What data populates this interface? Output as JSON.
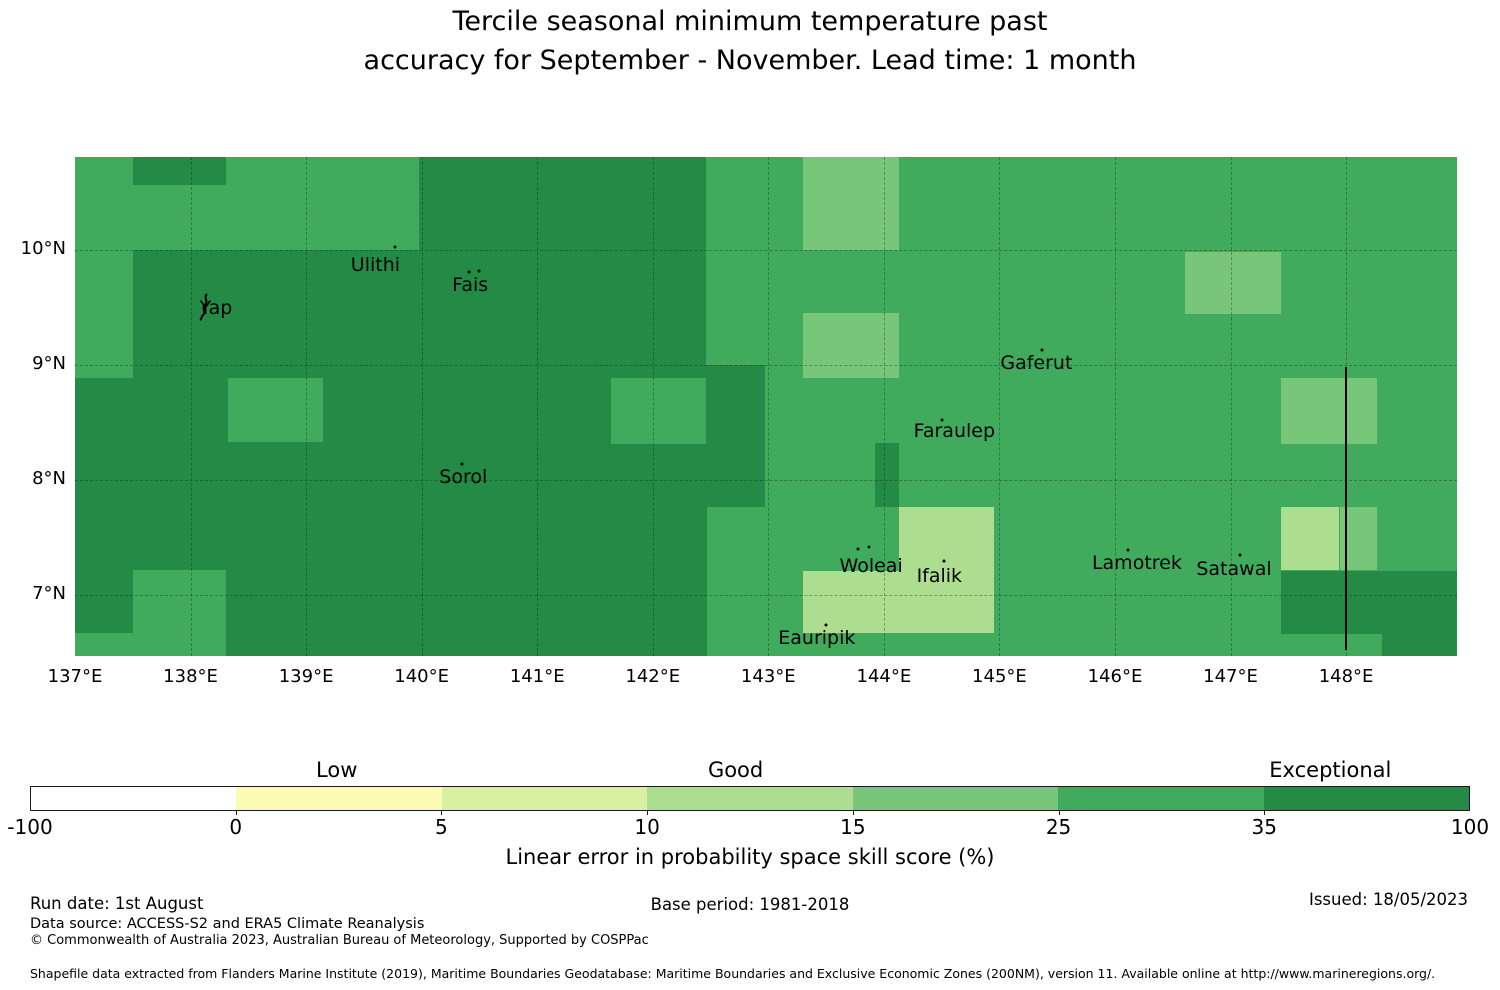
{
  "title": {
    "line1": "Tercile seasonal minimum temperature past",
    "line2": "accuracy for September - November. Lead time: 1 month"
  },
  "footer": {
    "run_date": "Run date: 1st August",
    "base_period": "Base period: 1981-2018",
    "issued": "Issued: 18/05/2023",
    "data_source": "Data source: ACCESS-S2 and ERA5 Climate Reanalysis",
    "copyright": "© Commonwealth of Australia 2023, Australian Bureau of Meteorology, Supported by COSPPac",
    "shapefile": "Shapefile data extracted from Flanders Marine Institute (2019), Maritime Boundaries Geodatabase: Maritime Boundaries and Exclusive Economic Zones (200NM), version 11. Available online at http://www.marineregions.org/."
  },
  "chart_data": {
    "type": "heatmap",
    "title": "Tercile seasonal minimum temperature past accuracy for September - November. Lead time: 1 month",
    "xlabel_ticks": [
      "137°E",
      "138°E",
      "139°E",
      "140°E",
      "141°E",
      "142°E",
      "143°E",
      "144°E",
      "145°E",
      "146°E",
      "147°E",
      "148°E"
    ],
    "ylabel_ticks": [
      "10°N",
      "9°N",
      "8°N",
      "7°N"
    ],
    "lon_range": [
      137.0,
      148.96
    ],
    "lat_range": [
      6.47,
      10.81
    ],
    "grid_lons": [
      138,
      139,
      140,
      141,
      142,
      143,
      144,
      145,
      146,
      147,
      148
    ],
    "grid_lats": [
      7,
      8,
      9,
      10
    ],
    "xtick_lons": [
      137,
      138,
      139,
      140,
      141,
      142,
      143,
      144,
      145,
      146,
      147,
      148
    ],
    "ytick_lats": [
      10,
      9,
      8,
      7
    ],
    "background_skill": "25-35",
    "palette": {
      "35-100": "#238b45",
      "25-35": "#41ab5d",
      "15-25": "#78c679",
      "10-15": "#addd8e"
    },
    "cells": [
      {
        "lon": [
          137.5,
          142.46
        ],
        "lat": [
          8.887,
          10.0
        ],
        "skill": "35-100"
      },
      {
        "lon": [
          139.98,
          142.46
        ],
        "lat": [
          10.0,
          10.81
        ],
        "skill": "35-100"
      },
      {
        "lon": [
          137.5,
          138.31
        ],
        "lat": [
          10.57,
          10.81
        ],
        "skill": "35-100"
      },
      {
        "lon": [
          137.0,
          142.47
        ],
        "lat": [
          6.47,
          8.887
        ],
        "skill": "35-100"
      },
      {
        "lon": [
          142.46,
          142.97
        ],
        "lat": [
          7.765,
          9.0
        ],
        "skill": "35-100"
      },
      {
        "lon": [
          143.92,
          144.13
        ],
        "lat": [
          7.765,
          8.322
        ],
        "skill": "35-100"
      },
      {
        "lon": [
          147.44,
          148.96
        ],
        "lat": [
          6.661,
          7.209
        ],
        "skill": "35-100"
      },
      {
        "lon": [
          148.31,
          148.96
        ],
        "lat": [
          6.47,
          6.661
        ],
        "skill": "35-100"
      },
      {
        "lon": [
          138.32,
          139.15
        ],
        "lat": [
          8.33,
          8.887
        ],
        "skill": "25-35"
      },
      {
        "lon": [
          141.64,
          142.46
        ],
        "lat": [
          8.313,
          8.887
        ],
        "skill": "25-35"
      },
      {
        "lon": [
          137.5,
          138.31
        ],
        "lat": [
          6.47,
          7.217
        ],
        "skill": "25-35"
      },
      {
        "lon": [
          137.0,
          137.5
        ],
        "lat": [
          6.47,
          6.67
        ],
        "skill": "25-35"
      },
      {
        "lon": [
          143.3,
          144.13
        ],
        "lat": [
          10.0,
          10.81
        ],
        "skill": "15-25"
      },
      {
        "lon": [
          143.3,
          144.13
        ],
        "lat": [
          8.887,
          9.452
        ],
        "skill": "15-25"
      },
      {
        "lon": [
          146.61,
          147.44
        ],
        "lat": [
          9.443,
          9.983
        ],
        "skill": "15-25"
      },
      {
        "lon": [
          147.44,
          148.27
        ],
        "lat": [
          8.313,
          8.887
        ],
        "skill": "15-25"
      },
      {
        "lon": [
          147.95,
          148.27
        ],
        "lat": [
          7.217,
          7.765
        ],
        "skill": "15-25"
      },
      {
        "lon": [
          144.13,
          144.95
        ],
        "lat": [
          6.67,
          7.765
        ],
        "skill": "10-15"
      },
      {
        "lon": [
          143.3,
          144.13
        ],
        "lat": [
          6.67,
          7.209
        ],
        "skill": "10-15"
      },
      {
        "lon": [
          147.44,
          147.94
        ],
        "lat": [
          7.217,
          7.765
        ],
        "skill": "10-15"
      }
    ],
    "islands": [
      {
        "name": "Yap",
        "label_lon": 138.22,
        "label_lat": 9.496,
        "marker": "island-outline",
        "dots": []
      },
      {
        "name": "Ulithi",
        "label_lon": 139.6,
        "label_lat": 9.87,
        "marker": "dot",
        "dots": [
          [
            139.77,
            10.03
          ]
        ]
      },
      {
        "name": "Fais",
        "label_lon": 140.42,
        "label_lat": 9.7,
        "marker": "dot",
        "dots": [
          [
            140.41,
            9.81
          ],
          [
            140.5,
            9.82
          ]
        ]
      },
      {
        "name": "Sorol",
        "label_lon": 140.36,
        "label_lat": 8.03,
        "marker": "dot",
        "dots": [
          [
            140.35,
            8.14
          ]
        ]
      },
      {
        "name": "Gaferut",
        "label_lon": 145.32,
        "label_lat": 9.02,
        "marker": "dot",
        "dots": [
          [
            145.37,
            9.13
          ]
        ]
      },
      {
        "name": "Faraulep",
        "label_lon": 144.61,
        "label_lat": 8.43,
        "marker": "dot",
        "dots": [
          [
            144.5,
            8.52
          ]
        ]
      },
      {
        "name": "Woleai",
        "label_lon": 143.89,
        "label_lat": 7.25,
        "marker": "dot",
        "dots": [
          [
            143.78,
            7.4
          ],
          [
            143.87,
            7.42
          ]
        ]
      },
      {
        "name": "Ifalik",
        "label_lon": 144.48,
        "label_lat": 7.17,
        "marker": "dot",
        "dots": [
          [
            144.52,
            7.3
          ]
        ]
      },
      {
        "name": "Lamotrek",
        "label_lon": 146.19,
        "label_lat": 7.28,
        "marker": "dot",
        "dots": [
          [
            146.11,
            7.39
          ]
        ]
      },
      {
        "name": "Satawal",
        "label_lon": 147.03,
        "label_lat": 7.23,
        "marker": "dot",
        "dots": [
          [
            147.08,
            7.35
          ]
        ]
      },
      {
        "name": "Eauripik",
        "label_lon": 143.42,
        "label_lat": 6.63,
        "marker": "dot",
        "dots": [
          [
            143.5,
            6.74
          ]
        ]
      }
    ],
    "boundary_line": {
      "lon": 148.0,
      "lat_top": 8.98,
      "lat_bottom": 6.52
    },
    "colorbar": {
      "label": "Linear error in probability space skill score (%)",
      "boundaries": [
        -100,
        0,
        5,
        10,
        15,
        25,
        35,
        100
      ],
      "segment_colors": [
        "#ffffff",
        "#fbfbb6",
        "#d9f0a3",
        "#addd8e",
        "#78c679",
        "#41ab5d",
        "#238b45"
      ],
      "categories": [
        {
          "text": "Low",
          "pos": 0.213
        },
        {
          "text": "Good",
          "pos": 0.49
        },
        {
          "text": "Exceptional",
          "pos": 0.903
        }
      ]
    }
  }
}
